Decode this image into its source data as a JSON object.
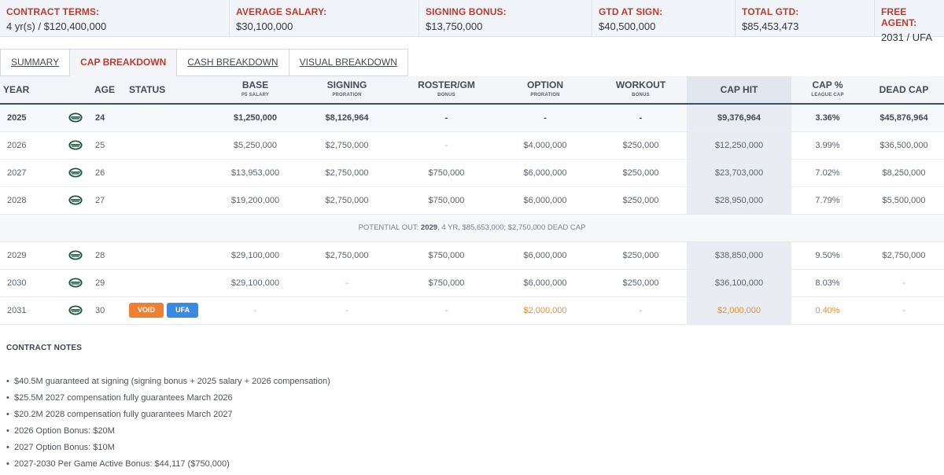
{
  "summary": [
    {
      "label": "CONTRACT TERMS:",
      "value": "4 yr(s) / $120,400,000"
    },
    {
      "label": "AVERAGE SALARY:",
      "value": "$30,100,000"
    },
    {
      "label": "SIGNING BONUS:",
      "value": "$13,750,000"
    },
    {
      "label": "GTD AT SIGN:",
      "value": "$40,500,000"
    },
    {
      "label": "TOTAL GTD:",
      "value": "$85,453,473"
    },
    {
      "label": "FREE AGENT:",
      "value": "2031 / UFA"
    }
  ],
  "tabs": [
    "SUMMARY",
    "CAP BREAKDOWN",
    "CASH BREAKDOWN",
    "VISUAL BREAKDOWN"
  ],
  "active_tab": "CAP BREAKDOWN",
  "headers": {
    "year": "YEAR",
    "age": "AGE",
    "status": "STATUS",
    "base": "BASE",
    "base_sub": "P5 SALARY",
    "signing": "SIGNING",
    "signing_sub": "PRORATION",
    "roster": "ROSTER/GM",
    "roster_sub": "BONUS",
    "option": "OPTION",
    "option_sub": "PRORATION",
    "workout": "WORKOUT",
    "workout_sub": "BONUS",
    "cap_hit": "CAP HIT",
    "cap_pct": "CAP %",
    "cap_pct_sub": "LEAGUE CAP",
    "dead_cap": "DEAD CAP"
  },
  "rows": [
    {
      "year": "2025",
      "age": "24",
      "base": "$1,250,000",
      "signing": "$8,126,964",
      "roster": "-",
      "option": "-",
      "workout": "-",
      "cap_hit": "$9,376,964",
      "cap_pct": "3.36%",
      "dead_cap": "$45,876,964"
    },
    {
      "year": "2026",
      "age": "25",
      "base": "$5,250,000",
      "signing": "$2,750,000",
      "roster": "-",
      "option": "$4,000,000",
      "workout": "$250,000",
      "cap_hit": "$12,250,000",
      "cap_pct": "3.99%",
      "dead_cap": "$36,500,000"
    },
    {
      "year": "2027",
      "age": "26",
      "base": "$13,953,000",
      "signing": "$2,750,000",
      "roster": "$750,000",
      "option": "$6,000,000",
      "workout": "$250,000",
      "cap_hit": "$23,703,000",
      "cap_pct": "7.02%",
      "dead_cap": "$8,250,000"
    },
    {
      "year": "2028",
      "age": "27",
      "base": "$19,200,000",
      "signing": "$2,750,000",
      "roster": "$750,000",
      "option": "$6,000,000",
      "workout": "$250,000",
      "cap_hit": "$28,950,000",
      "cap_pct": "7.79%",
      "dead_cap": "$5,500,000"
    },
    {
      "year": "2029",
      "age": "28",
      "base": "$29,100,000",
      "signing": "$2,750,000",
      "roster": "$750,000",
      "option": "$6,000,000",
      "workout": "$250,000",
      "cap_hit": "$38,850,000",
      "cap_pct": "9.50%",
      "dead_cap": "$2,750,000"
    },
    {
      "year": "2030",
      "age": "29",
      "base": "$29,100,000",
      "signing": "-",
      "roster": "$750,000",
      "option": "$6,000,000",
      "workout": "$250,000",
      "cap_hit": "$36,100,000",
      "cap_pct": "8.03%",
      "dead_cap": "-"
    },
    {
      "year": "2031",
      "age": "30",
      "base": "-",
      "signing": "-",
      "roster": "-",
      "option": "$2,000,000",
      "workout": "-",
      "cap_hit": "$2,000,000",
      "cap_pct": "0.40%",
      "dead_cap": "-",
      "badges": [
        "VOID",
        "UFA"
      ]
    }
  ],
  "potential_out": {
    "prefix": "POTENTIAL OUT: ",
    "year": "2029",
    "rest": ", 4 YR, $85,653,000; $2,750,000 DEAD CAP"
  },
  "notes": {
    "title": "CONTRACT NOTES",
    "items": [
      "$40.5M guaranteed at signing (signing bonus + 2025 salary + 2026 compensation)",
      "$25.5M 2027 compensation fully guarantees March 2026",
      "$20.2M 2028 compensation fully guarantees March 2027",
      "2026 Option Bonus: $20M",
      "2027 Option Bonus: $10M",
      "2027-2030 Per Game Active Bonus: $44,117 ($750,000)"
    ]
  },
  "colors": {
    "label_red": "#c0392b",
    "future_orange": "#e8902e",
    "void_badge": "#ef7f33",
    "ufa_badge": "#3a8ae0",
    "team_green": "#1e5a3e"
  },
  "icons": {
    "team_logo": "jets-logo-icon"
  }
}
